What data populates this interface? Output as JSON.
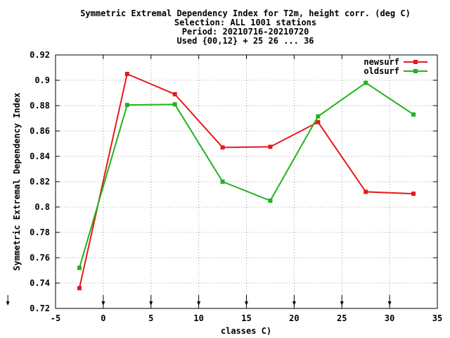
{
  "chart_data": {
    "type": "line",
    "title_lines": [
      "Symmetric Extremal Dependency Index  for T2m, height corr. (deg C)",
      "Selection: ALL   1001 stations",
      "Period: 20210716-20210720",
      "Used {00,12} + 25 26 ... 36"
    ],
    "xlabel": "classes C)",
    "ylabel": "Symmetric Extremal Dependency Index",
    "xlim": [
      -5,
      35
    ],
    "ylim": [
      0.72,
      0.92
    ],
    "xticks": [
      -5,
      0,
      5,
      10,
      15,
      20,
      25,
      30,
      35
    ],
    "yticks": [
      0.72,
      0.74,
      0.76,
      0.78,
      0.8,
      0.82,
      0.84,
      0.86,
      0.88,
      0.9,
      0.92
    ],
    "xtick_labels": [
      "-5",
      "0",
      "5",
      "10",
      "15",
      "20",
      "25",
      "30",
      "35"
    ],
    "ytick_labels": [
      "0.72",
      "0.74",
      "0.76",
      "0.78",
      "0.8",
      "0.82",
      "0.84",
      "0.86",
      "0.88",
      "0.9",
      "0.92"
    ],
    "grid": true,
    "legend_position": "top-right",
    "x": [
      -2.5,
      2.5,
      7.5,
      12.5,
      17.5,
      22.5,
      27.5,
      32.5
    ],
    "series": [
      {
        "name": "newsurf",
        "color": "#e31a1c",
        "values": [
          0.736,
          0.905,
          0.889,
          0.847,
          0.8475,
          0.867,
          0.812,
          0.8105
        ]
      },
      {
        "name": "oldsurf",
        "color": "#1fb31f",
        "values": [
          0.752,
          0.8805,
          0.881,
          0.82,
          0.805,
          0.8715,
          0.898,
          0.873
        ]
      }
    ],
    "markers_x": [
      -10,
      0,
      5,
      10,
      15,
      20,
      25,
      30
    ]
  }
}
